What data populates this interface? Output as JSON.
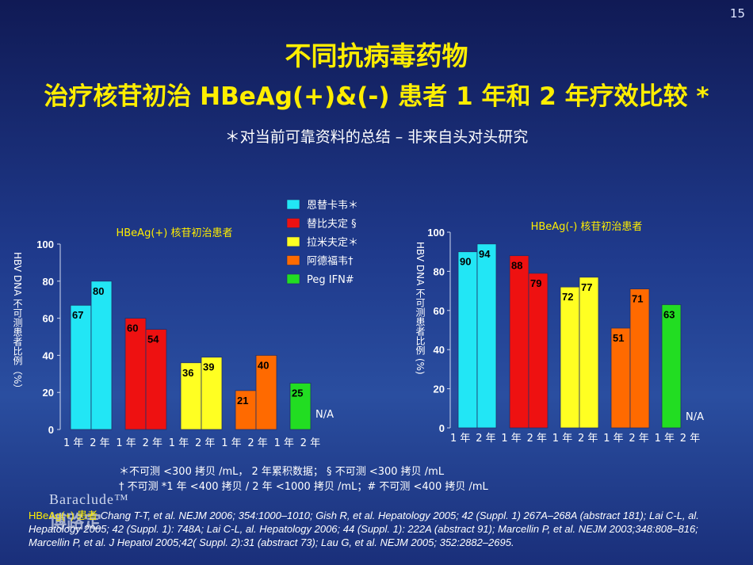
{
  "page_number": "15",
  "title_line1": "不同抗病毒药物",
  "title_line2": "治疗核苷初治 HBeAg(+)&(-) 患者 1 年和 2 年疗效比较 *",
  "subtitle": "＊对当前可靠资料的总结 – 非来自头对头研究",
  "legend": [
    {
      "label": "恩替卡韦＊",
      "color": "#22e6f5"
    },
    {
      "label": "替比夫定 §",
      "color": "#ee1111"
    },
    {
      "label": "拉米夫定＊",
      "color": "#ffff22"
    },
    {
      "label": "阿德福韦†",
      "color": "#ff6a00"
    },
    {
      "label": "Peg IFN#",
      "color": "#22dd22"
    }
  ],
  "chart_data": [
    {
      "type": "bar",
      "title": "HBeAg(+) 核苷初治患者",
      "ylabel": "HBV DNA 不可测患者比例（%）",
      "ylim": [
        0,
        100
      ],
      "yticks": [
        "0",
        "20",
        "40",
        "60",
        "80",
        "100"
      ],
      "xtick_labels": [
        "1 年",
        "2 年",
        "1 年",
        "2 年",
        "1 年",
        "2 年",
        "1 年",
        "2 年",
        "1 年",
        "2 年"
      ],
      "groups": [
        {
          "drug": "恩替卡韦＊",
          "values": [
            67,
            80
          ]
        },
        {
          "drug": "替比夫定 §",
          "values": [
            60,
            54
          ]
        },
        {
          "drug": "拉米夫定＊",
          "values": [
            36,
            39
          ]
        },
        {
          "drug": "阿德福韦†",
          "values": [
            21,
            40
          ]
        },
        {
          "drug": "Peg IFN#",
          "values": [
            25,
            null
          ]
        }
      ],
      "na_label": "N/A"
    },
    {
      "type": "bar",
      "title": "HBeAg(-) 核苷初治患者",
      "ylabel": "HBV DNA 不可测患者比例 (%)",
      "ylim": [
        0,
        100
      ],
      "yticks": [
        "0",
        "20",
        "40",
        "60",
        "80",
        "100"
      ],
      "xtick_labels": [
        "1 年",
        "2 年",
        "1 年",
        "2 年",
        "1 年",
        "2 年",
        "1 年",
        "2 年",
        "1 年",
        "2 年"
      ],
      "groups": [
        {
          "drug": "恩替卡韦＊",
          "values": [
            90,
            94
          ]
        },
        {
          "drug": "替比夫定 §",
          "values": [
            88,
            79
          ]
        },
        {
          "drug": "拉米夫定＊",
          "values": [
            72,
            77
          ]
        },
        {
          "drug": "阿德福韦†",
          "values": [
            51,
            71
          ]
        },
        {
          "drug": "Peg IFN#",
          "values": [
            63,
            null
          ]
        }
      ],
      "na_label": "N/A"
    }
  ],
  "footnote1": "＊不可测 <300 拷贝 /mL， 2 年累积数据； § 不可测 <300 拷贝 /mL",
  "footnote2": "† 不可测 *1 年 <400 拷贝 / 2 年 <1000 拷贝 /mL；# 不可测 <400 拷贝 /mL",
  "refs_lead": "HBeAg(+) 患者",
  "refs_text": "Chang T-T, et al. NEJM 2006; 354:1000–1010; Gish R, et al. Hepatology 2005; 42 (Suppl. 1) 267A–268A (abstract 181); Lai C-L, al. Hepatology 2005; 42 (Suppl. 1): 748A; Lai C-L, al. Hepatology 2006; 44 (Suppl. 1): 222A (abstract 91); Marcellin P, et al. NEJM 2003;348:808–816; Marcellin P, et al. J Hepatol 2005;42( Suppl. 2):31 (abstract 73); Lau G, et al. NEJM 2005; 352:2882–2695.",
  "logo_text": "Baraclude™",
  "logo_cn": "博路定"
}
